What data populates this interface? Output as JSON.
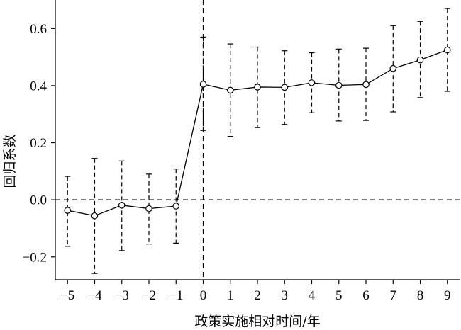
{
  "chart_data": {
    "type": "line",
    "title": "",
    "xlabel": "政策实施相对时间/年",
    "ylabel": "回归系数",
    "x": [
      -5,
      -4,
      -3,
      -2,
      -1,
      0,
      1,
      2,
      3,
      4,
      5,
      6,
      7,
      8,
      9
    ],
    "x_tick_labels": [
      "−5",
      "−4",
      "−3",
      "−2",
      "−1",
      "0",
      "1",
      "2",
      "3",
      "4",
      "5",
      "6",
      "7",
      "8",
      "9"
    ],
    "y_ticks": [
      -0.2,
      0.0,
      0.2,
      0.4,
      0.6
    ],
    "y_tick_labels": [
      "−0.2",
      "0.0",
      "0.2",
      "0.4",
      "0.6"
    ],
    "xlim": [
      -5.45,
      9.45
    ],
    "ylim": [
      -0.28,
      0.7
    ],
    "series": [
      {
        "values": [
          -0.037,
          -0.056,
          -0.019,
          -0.031,
          -0.022,
          0.405,
          0.384,
          0.395,
          0.394,
          0.41,
          0.401,
          0.404,
          0.46,
          0.49,
          0.525
        ],
        "ci_lower": [
          -0.163,
          -0.258,
          -0.178,
          -0.155,
          -0.152,
          0.243,
          0.222,
          0.253,
          0.264,
          0.305,
          0.276,
          0.278,
          0.308,
          0.358,
          0.38
        ],
        "ci_upper": [
          0.082,
          0.145,
          0.136,
          0.09,
          0.108,
          0.57,
          0.546,
          0.535,
          0.522,
          0.515,
          0.528,
          0.531,
          0.61,
          0.625,
          0.67
        ]
      }
    ],
    "reference_lines": {
      "y": 0.0,
      "x": 0
    },
    "grid": false,
    "legend": "none"
  }
}
